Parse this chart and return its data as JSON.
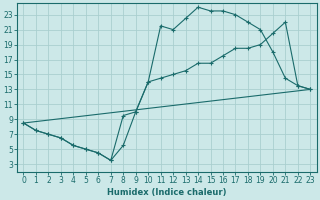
{
  "xlabel": "Humidex (Indice chaleur)",
  "bg_color": "#cce8e8",
  "grid_color": "#aacfcf",
  "line_color": "#1a6b6b",
  "xlim": [
    -0.5,
    23.5
  ],
  "ylim": [
    2.0,
    24.5
  ],
  "xticks": [
    0,
    1,
    2,
    3,
    4,
    5,
    6,
    7,
    8,
    9,
    10,
    11,
    12,
    13,
    14,
    15,
    16,
    17,
    18,
    19,
    20,
    21,
    22,
    23
  ],
  "yticks": [
    3,
    5,
    7,
    9,
    11,
    13,
    15,
    17,
    19,
    21,
    23
  ],
  "line1_x": [
    0,
    1,
    2,
    3,
    4,
    5,
    6,
    7,
    8,
    9,
    10,
    11,
    12,
    13,
    14,
    15,
    16,
    17,
    18,
    19,
    20,
    21,
    22,
    23
  ],
  "line1_y": [
    8.5,
    7.5,
    7.0,
    6.5,
    5.5,
    5.0,
    4.5,
    3.5,
    5.5,
    10.0,
    14.0,
    21.5,
    21.0,
    22.5,
    24.0,
    23.5,
    23.5,
    23.0,
    22.0,
    21.0,
    18.0,
    14.5,
    13.5,
    13.0
  ],
  "line2_x": [
    0,
    1,
    2,
    3,
    4,
    5,
    6,
    7,
    8,
    9,
    10,
    11,
    12,
    13,
    14,
    15,
    16,
    17,
    18,
    19,
    20,
    21,
    22,
    23
  ],
  "line2_y": [
    8.5,
    7.5,
    7.0,
    6.5,
    5.5,
    5.0,
    4.5,
    3.5,
    9.5,
    10.0,
    14.0,
    14.5,
    15.0,
    15.5,
    16.5,
    16.5,
    17.5,
    18.5,
    18.5,
    19.0,
    20.5,
    22.0,
    13.5,
    13.0
  ],
  "line3_x": [
    0,
    23
  ],
  "line3_y": [
    8.5,
    13.0
  ]
}
